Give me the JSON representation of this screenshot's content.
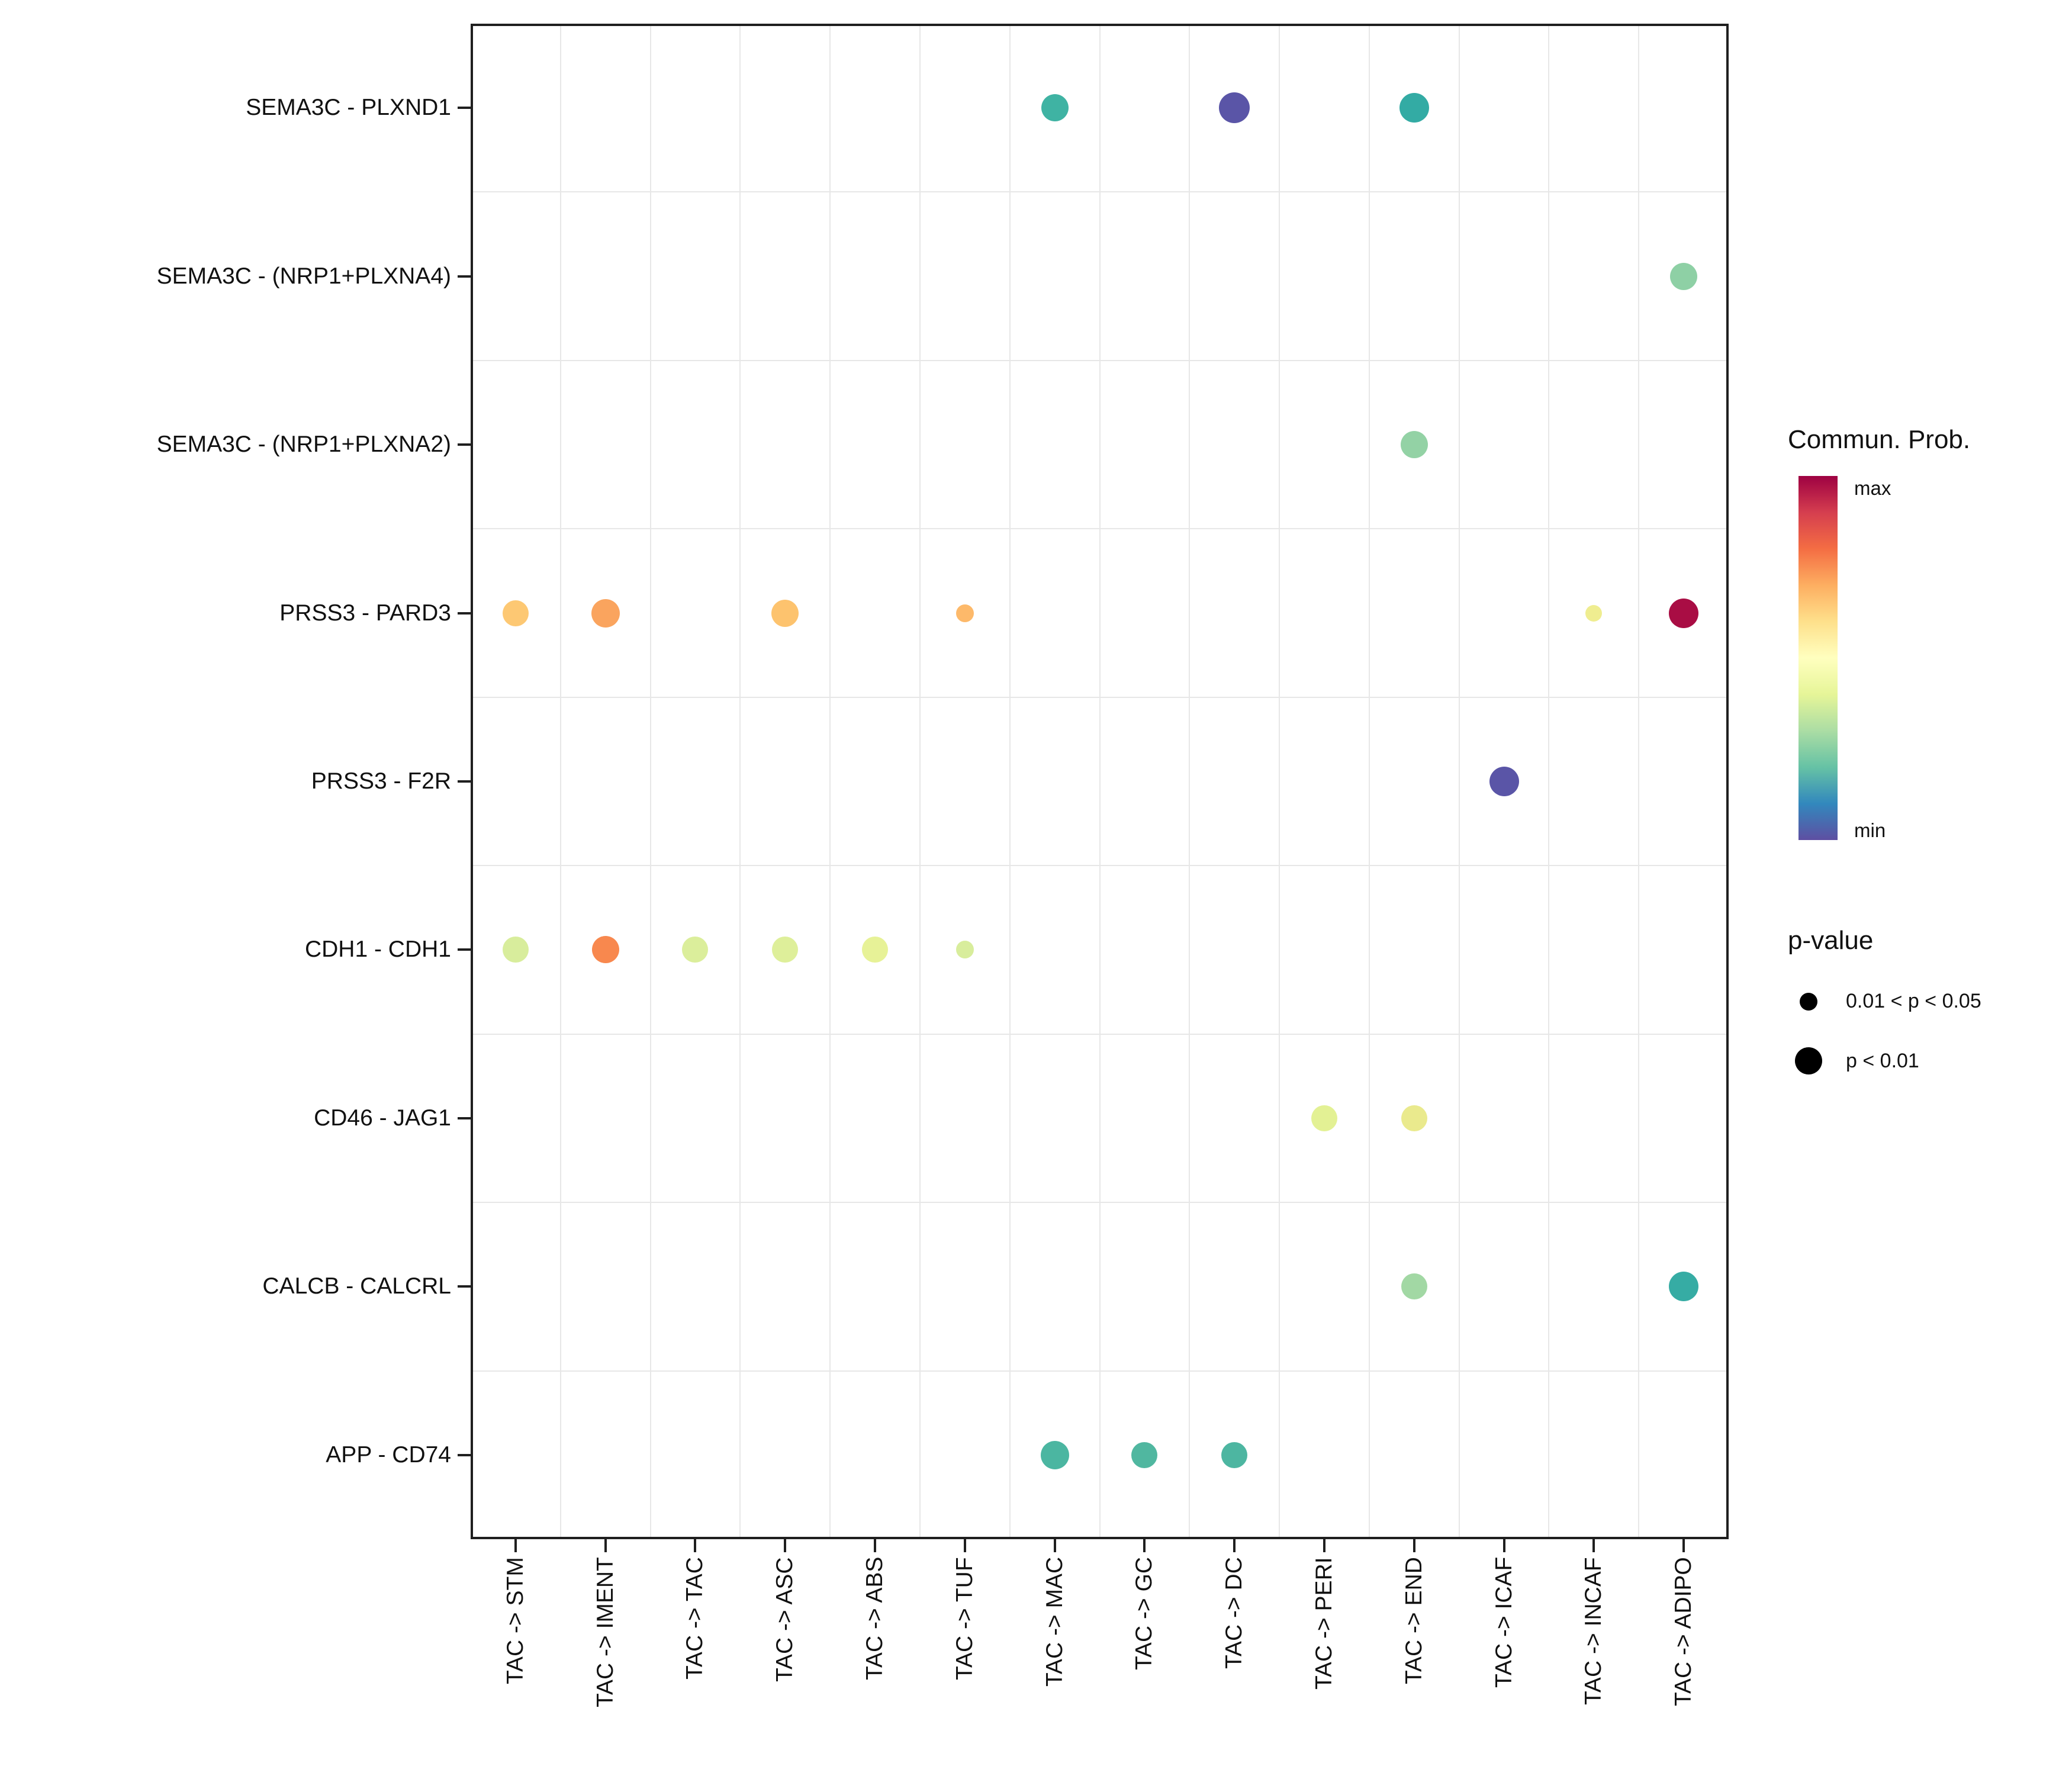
{
  "chart_data": {
    "type": "scatter",
    "subtype": "bubble-dotplot",
    "title": "",
    "xlabel": "",
    "ylabel": "",
    "grid": true,
    "x_categories": [
      "TAC -> STM",
      "TAC -> IMENT",
      "TAC -> TAC",
      "TAC -> ASC",
      "TAC -> ABS",
      "TAC -> TUF",
      "TAC -> MAC",
      "TAC -> GC",
      "TAC -> DC",
      "TAC -> PERI",
      "TAC -> END",
      "TAC -> ICAF",
      "TAC -> INCAF",
      "TAC -> ADIPO"
    ],
    "y_categories": [
      "SEMA3C - PLXND1",
      "SEMA3C - (NRP1+PLXNA4)",
      "SEMA3C - (NRP1+PLXNA2)",
      "PRSS3 - PARD3",
      "PRSS3 - F2R",
      "CDH1 - CDH1",
      "CD46 - JAG1",
      "CALCB - CALCRL",
      "APP - CD74"
    ],
    "points": [
      {
        "y": "SEMA3C - PLXND1",
        "x": "TAC -> MAC",
        "color": "#3FB3A3",
        "size": 46,
        "p_class": "p < 0.01",
        "prob_level": "mid-low"
      },
      {
        "y": "SEMA3C - PLXND1",
        "x": "TAC -> DC",
        "color": "#5A55A7",
        "size": 52,
        "p_class": "p < 0.01",
        "prob_level": "min"
      },
      {
        "y": "SEMA3C - PLXND1",
        "x": "TAC -> END",
        "color": "#33ABA4",
        "size": 50,
        "p_class": "p < 0.01",
        "prob_level": "mid-low"
      },
      {
        "y": "SEMA3C - (NRP1+PLXNA4)",
        "x": "TAC -> ADIPO",
        "color": "#8ED0A5",
        "size": 46,
        "p_class": "p < 0.01",
        "prob_level": "mid"
      },
      {
        "y": "SEMA3C - (NRP1+PLXNA2)",
        "x": "TAC -> END",
        "color": "#93D2A5",
        "size": 46,
        "p_class": "p < 0.01",
        "prob_level": "mid"
      },
      {
        "y": "PRSS3 - PARD3",
        "x": "TAC -> STM",
        "color": "#FDC873",
        "size": 44,
        "p_class": "p < 0.01",
        "prob_level": "mid-high"
      },
      {
        "y": "PRSS3 - PARD3",
        "x": "TAC -> IMENT",
        "color": "#FAA45E",
        "size": 48,
        "p_class": "p < 0.01",
        "prob_level": "high"
      },
      {
        "y": "PRSS3 - PARD3",
        "x": "TAC -> ASC",
        "color": "#FDC36E",
        "size": 46,
        "p_class": "p < 0.01",
        "prob_level": "mid-high"
      },
      {
        "y": "PRSS3 - PARD3",
        "x": "TAC -> TUF",
        "color": "#FDB96A",
        "size": 30,
        "p_class": "0.01 < p < 0.05",
        "prob_level": "mid-high"
      },
      {
        "y": "PRSS3 - PARD3",
        "x": "TAC -> INCAF",
        "color": "#EFED90",
        "size": 28,
        "p_class": "0.01 < p < 0.05",
        "prob_level": "mid"
      },
      {
        "y": "PRSS3 - PARD3",
        "x": "TAC -> ADIPO",
        "color": "#A90D44",
        "size": 50,
        "p_class": "p < 0.01",
        "prob_level": "max"
      },
      {
        "y": "PRSS3 - F2R",
        "x": "TAC -> ICAF",
        "color": "#5A55A7",
        "size": 50,
        "p_class": "p < 0.01",
        "prob_level": "min"
      },
      {
        "y": "CDH1 - CDH1",
        "x": "TAC -> STM",
        "color": "#D8ED9C",
        "size": 44,
        "p_class": "p < 0.01",
        "prob_level": "mid"
      },
      {
        "y": "CDH1 - CDH1",
        "x": "TAC -> IMENT",
        "color": "#F8884E",
        "size": 46,
        "p_class": "p < 0.01",
        "prob_level": "high"
      },
      {
        "y": "CDH1 - CDH1",
        "x": "TAC -> TAC",
        "color": "#DBEE9B",
        "size": 44,
        "p_class": "p < 0.01",
        "prob_level": "mid"
      },
      {
        "y": "CDH1 - CDH1",
        "x": "TAC -> ASC",
        "color": "#DEEF9A",
        "size": 44,
        "p_class": "p < 0.01",
        "prob_level": "mid"
      },
      {
        "y": "CDH1 - CDH1",
        "x": "TAC -> ABS",
        "color": "#E7F297",
        "size": 44,
        "p_class": "p < 0.01",
        "prob_level": "mid"
      },
      {
        "y": "CDH1 - CDH1",
        "x": "TAC -> TUF",
        "color": "#D8ED9C",
        "size": 30,
        "p_class": "0.01 < p < 0.05",
        "prob_level": "mid"
      },
      {
        "y": "CD46 - JAG1",
        "x": "TAC -> PERI",
        "color": "#E3F194",
        "size": 44,
        "p_class": "p < 0.01",
        "prob_level": "mid"
      },
      {
        "y": "CD46 - JAG1",
        "x": "TAC -> END",
        "color": "#EAEA8D",
        "size": 44,
        "p_class": "p < 0.01",
        "prob_level": "mid"
      },
      {
        "y": "CALCB - CALCRL",
        "x": "TAC -> END",
        "color": "#A2D8A4",
        "size": 44,
        "p_class": "p < 0.01",
        "prob_level": "mid"
      },
      {
        "y": "CALCB - CALCRL",
        "x": "TAC -> ADIPO",
        "color": "#36ACA4",
        "size": 50,
        "p_class": "p < 0.01",
        "prob_level": "mid-low"
      },
      {
        "y": "APP - CD74",
        "x": "TAC -> MAC",
        "color": "#4BB6A1",
        "size": 48,
        "p_class": "p < 0.01",
        "prob_level": "mid-low"
      },
      {
        "y": "APP - CD74",
        "x": "TAC -> GC",
        "color": "#50B7A0",
        "size": 44,
        "p_class": "p < 0.01",
        "prob_level": "mid-low"
      },
      {
        "y": "APP - CD74",
        "x": "TAC -> DC",
        "color": "#4DB6A1",
        "size": 44,
        "p_class": "p < 0.01",
        "prob_level": "mid-low"
      }
    ],
    "legend": {
      "color_title": "Commun. Prob.",
      "color_max_label": "max",
      "color_min_label": "min",
      "gradient": [
        "#9E0142",
        "#D53E4F",
        "#F46D43",
        "#FDAE61",
        "#FEE08B",
        "#FFFFBF",
        "#E6F598",
        "#ABDDA4",
        "#66C2A5",
        "#3288BD",
        "#5E4FA2"
      ],
      "size_title": "p-value",
      "size_entries": [
        {
          "label": "0.01 < p < 0.05",
          "diameter": 30
        },
        {
          "label": "p < 0.01",
          "diameter": 46
        }
      ]
    },
    "colors": {
      "grid_line": "#e7e7e7",
      "panel_border": "#1f1f1f",
      "text": "#111111",
      "background": "#ffffff"
    }
  }
}
